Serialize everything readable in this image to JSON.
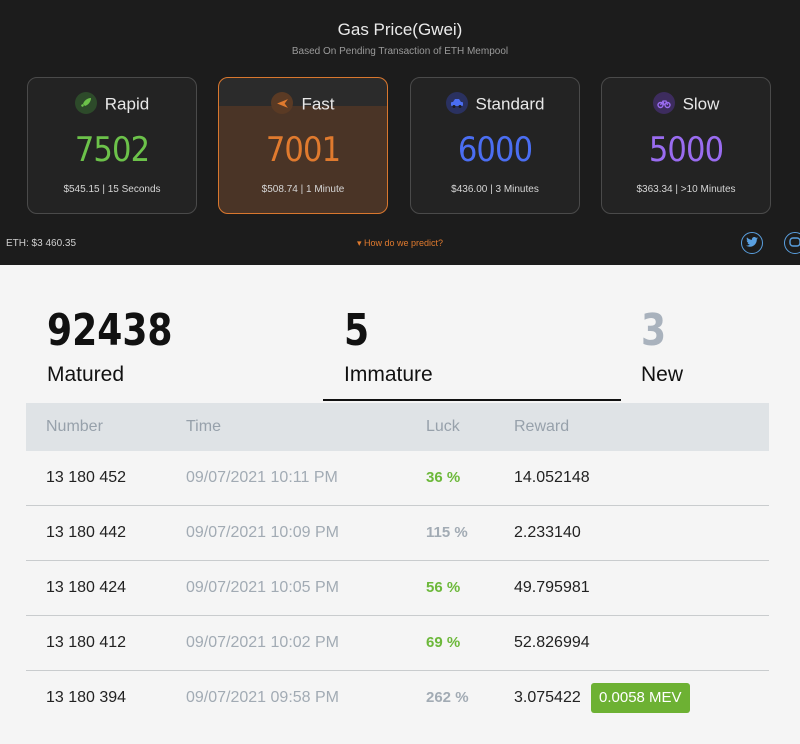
{
  "gas": {
    "title": "Gas Price(Gwei)",
    "subtitle": "Based On Pending Transaction of ETH Mempool",
    "cards": [
      {
        "label": "Rapid",
        "value": "7502",
        "info": "$545.15 | 15 Seconds",
        "color": "#6cc24a",
        "icon": "rocket-icon"
      },
      {
        "label": "Fast",
        "value": "7001",
        "info": "$508.74 | 1 Minute",
        "color": "#e07a2e",
        "icon": "plane-icon"
      },
      {
        "label": "Standard",
        "value": "6000",
        "info": "$436.00 | 3 Minutes",
        "color": "#4b6ef2",
        "icon": "car-icon"
      },
      {
        "label": "Slow",
        "value": "5000",
        "info": "$363.34 | >10 Minutes",
        "color": "#9a6cf0",
        "icon": "bicycle-icon"
      }
    ],
    "eth_price": "ETH: $3 460.35",
    "predict_link": "How do we predict?",
    "accent_color": "#d9772e"
  },
  "blocks": {
    "stats": [
      {
        "value": "92438",
        "label": "Matured"
      },
      {
        "value": "5",
        "label": "Immature"
      },
      {
        "value": "3",
        "label": "New"
      }
    ],
    "columns": [
      "Number",
      "Time",
      "Luck",
      "Reward"
    ],
    "rows": [
      {
        "number": "13 180 452",
        "time": "09/07/2021 10:11 PM",
        "luck": "36 %",
        "luck_color": "#6cb83a",
        "reward": "14.052148",
        "mev": ""
      },
      {
        "number": "13 180 442",
        "time": "09/07/2021 10:09 PM",
        "luck": "115 %",
        "luck_color": "#a2abb4",
        "reward": "2.233140",
        "mev": ""
      },
      {
        "number": "13 180 424",
        "time": "09/07/2021 10:05 PM",
        "luck": "56 %",
        "luck_color": "#6cb83a",
        "reward": "49.795981",
        "mev": ""
      },
      {
        "number": "13 180 412",
        "time": "09/07/2021 10:02 PM",
        "luck": "69 %",
        "luck_color": "#6cb83a",
        "reward": "52.826994",
        "mev": ""
      },
      {
        "number": "13 180 394",
        "time": "09/07/2021 09:58 PM",
        "luck": "262 %",
        "luck_color": "#a2abb4",
        "reward": "3.075422",
        "mev": "0.0058 MEV"
      }
    ]
  }
}
